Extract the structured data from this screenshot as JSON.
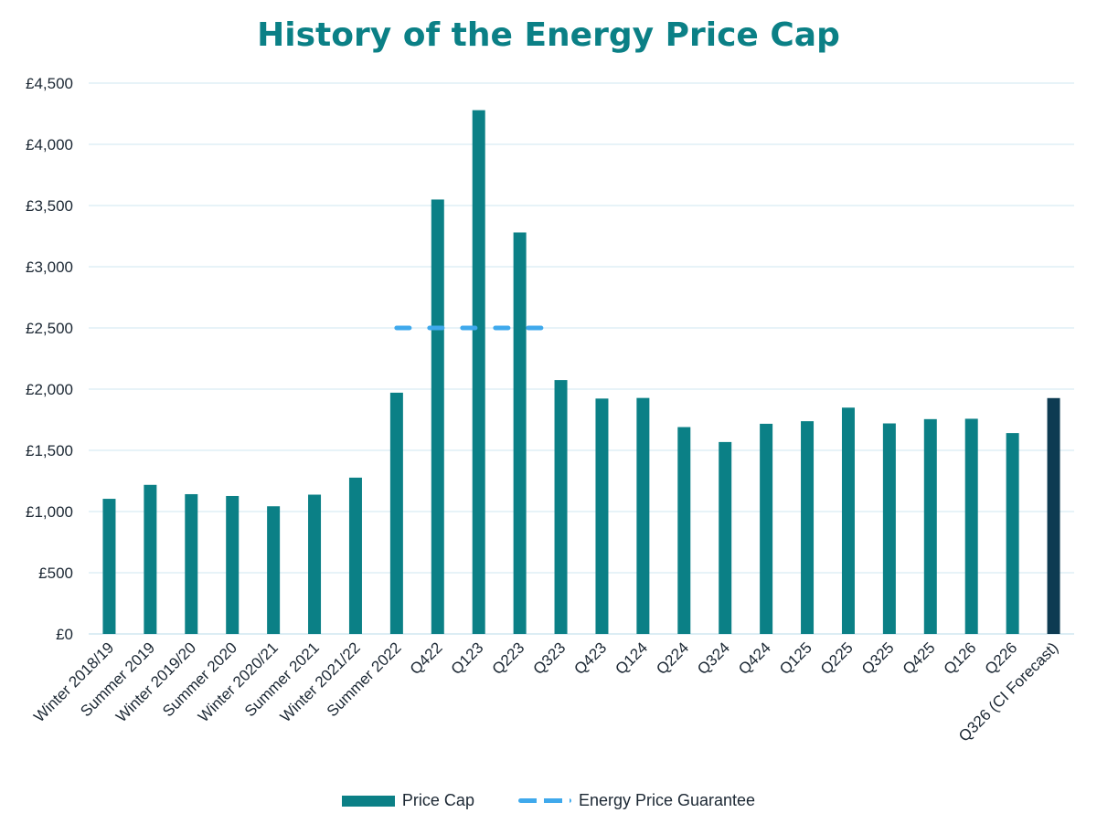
{
  "chart_data": {
    "type": "bar",
    "title": "History of the Energy Price Cap",
    "xlabel": "",
    "ylabel": "",
    "ylim": [
      0,
      4500
    ],
    "yticks": [
      0,
      500,
      1000,
      1500,
      2000,
      2500,
      3000,
      3500,
      4000,
      4500
    ],
    "ytick_labels": [
      "£0",
      "£500",
      "£1,000",
      "£1,500",
      "£2,000",
      "£2,500",
      "£3,000",
      "£3,500",
      "£4,000",
      "£4,500"
    ],
    "grid": true,
    "legend_position": "bottom",
    "categories": [
      "Winter 2018/19",
      "Summer 2019",
      "Winter 2019/20",
      "Summer 2020",
      "Winter 2020/21",
      "Summer 2021",
      "Winter 2021/22",
      "Summer 2022",
      "Q422",
      "Q123",
      "Q223",
      "Q323",
      "Q423",
      "Q124",
      "Q224",
      "Q324",
      "Q424",
      "Q125",
      "Q225",
      "Q325",
      "Q425",
      "Q126",
      "Q226",
      "Q326 (CI Forecast)"
    ],
    "series": [
      {
        "name": "Price Cap",
        "type": "bar",
        "color": "#0b8086",
        "highlight_color": "#0d3b52",
        "highlight_index": 23,
        "values": [
          1104,
          1218,
          1142,
          1127,
          1043,
          1138,
          1277,
          1971,
          3549,
          4279,
          3280,
          2074,
          1923,
          1928,
          1690,
          1568,
          1717,
          1738,
          1849,
          1720,
          1755,
          1758,
          1641,
          1927
        ]
      },
      {
        "name": "Energy Price Guarantee",
        "type": "line",
        "style": "dashed",
        "color": "#3fa9ec",
        "x_range": [
          "Summer 2022",
          "Q323"
        ],
        "value": 2500
      }
    ]
  }
}
